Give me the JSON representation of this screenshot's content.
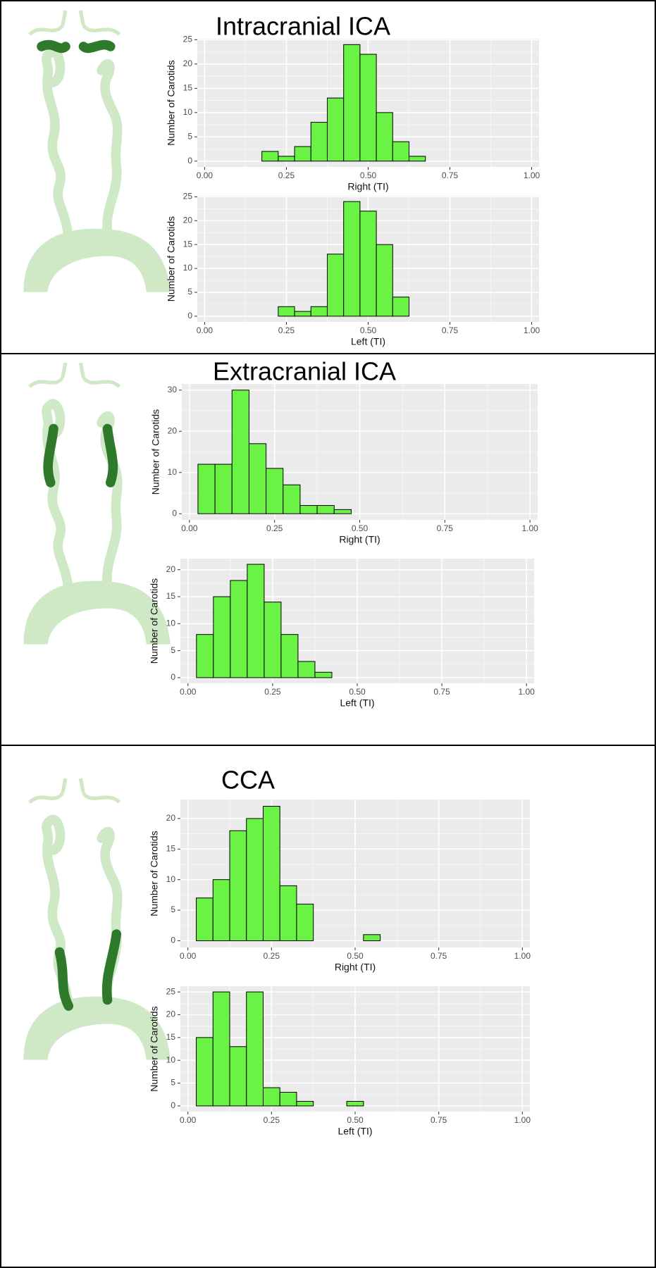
{
  "chart_data": [
    {
      "type": "histogram",
      "title": "Intracranial ICA",
      "xlabel": "Right (TI)",
      "ylabel": "Number of Carotids",
      "color": "#6af244",
      "grid": true,
      "bins": [
        0.025,
        0.075,
        0.125,
        0.175,
        0.225,
        0.275,
        0.325,
        0.375,
        0.425,
        0.475,
        0.525,
        0.575,
        0.625,
        0.675,
        0.725,
        0.775,
        0.825,
        0.875,
        0.925,
        0.975
      ],
      "values": [
        0,
        0,
        0,
        2,
        1,
        3,
        8,
        13,
        24,
        22,
        10,
        4,
        1,
        0,
        0,
        0,
        0,
        0,
        0
      ],
      "xlim": [
        -0.0225,
        1.0225
      ],
      "ylim": [
        -1.2,
        25.2
      ],
      "xticks": [
        {
          "value": 0,
          "label": "0.00"
        },
        {
          "value": 0.25,
          "label": "0.25"
        },
        {
          "value": 0.5,
          "label": "0.50"
        },
        {
          "value": 0.75,
          "label": "0.75"
        },
        {
          "value": 1,
          "label": "1.00"
        }
      ],
      "yticks": [
        0,
        5,
        10,
        15,
        20,
        25
      ]
    },
    {
      "type": "histogram",
      "xlabel": "Left (TI)",
      "ylabel": "Number of Carotids",
      "color": "#6af244",
      "grid": true,
      "bins": [
        0.025,
        0.075,
        0.125,
        0.175,
        0.225,
        0.275,
        0.325,
        0.375,
        0.425,
        0.475,
        0.525,
        0.575,
        0.625,
        0.675,
        0.725,
        0.775,
        0.825,
        0.875,
        0.925,
        0.975
      ],
      "values": [
        0,
        0,
        0,
        0,
        2,
        1,
        2,
        13,
        24,
        22,
        15,
        4,
        0,
        0,
        0,
        0,
        0,
        0,
        0
      ],
      "xlim": [
        -0.0225,
        1.0225
      ],
      "ylim": [
        -1.2,
        25.2
      ],
      "xticks": [
        {
          "value": 0,
          "label": "0.00"
        },
        {
          "value": 0.25,
          "label": "0.25"
        },
        {
          "value": 0.5,
          "label": "0.50"
        },
        {
          "value": 0.75,
          "label": "0.75"
        },
        {
          "value": 1,
          "label": "1.00"
        }
      ],
      "yticks": [
        0,
        5,
        10,
        15,
        20,
        25
      ]
    },
    {
      "type": "histogram",
      "title": "Extracranial ICA",
      "xlabel": "Right (TI)",
      "ylabel": "Number of Carotids",
      "color": "#6af244",
      "grid": true,
      "bins": [
        0.025,
        0.075,
        0.125,
        0.175,
        0.225,
        0.275,
        0.325,
        0.375,
        0.425,
        0.475,
        0.525,
        0.575,
        0.625,
        0.675,
        0.725,
        0.775,
        0.825,
        0.875,
        0.925,
        0.975
      ],
      "values": [
        12,
        12,
        30,
        17,
        11,
        7,
        2,
        2,
        1,
        0,
        0,
        0,
        0,
        0,
        0,
        0,
        0,
        0,
        0
      ],
      "xlim": [
        -0.0225,
        1.0225
      ],
      "ylim": [
        -1.5,
        31.5
      ],
      "xticks": [
        {
          "value": 0,
          "label": "0.00"
        },
        {
          "value": 0.25,
          "label": "0.25"
        },
        {
          "value": 0.5,
          "label": "0.50"
        },
        {
          "value": 0.75,
          "label": "0.75"
        },
        {
          "value": 1,
          "label": "1.00"
        }
      ],
      "yticks": [
        0,
        10,
        20,
        30
      ]
    },
    {
      "type": "histogram",
      "xlabel": "Left (TI)",
      "ylabel": "Number of Carotids",
      "color": "#6af244",
      "grid": true,
      "bins": [
        0.025,
        0.075,
        0.125,
        0.175,
        0.225,
        0.275,
        0.325,
        0.375,
        0.425,
        0.475,
        0.525,
        0.575,
        0.625,
        0.675,
        0.725,
        0.775,
        0.825,
        0.875,
        0.925,
        0.975
      ],
      "values": [
        8,
        15,
        18,
        21,
        14,
        8,
        3,
        1,
        0,
        0,
        0,
        0,
        0,
        0,
        0,
        0,
        0,
        0,
        0
      ],
      "xlim": [
        -0.0225,
        1.0225
      ],
      "ylim": [
        -1.05,
        22.05
      ],
      "xticks": [
        {
          "value": 0,
          "label": "0.00"
        },
        {
          "value": 0.25,
          "label": "0.25"
        },
        {
          "value": 0.5,
          "label": "0.50"
        },
        {
          "value": 0.75,
          "label": "0.75"
        },
        {
          "value": 1,
          "label": "1.00"
        }
      ],
      "yticks": [
        0,
        5,
        10,
        15,
        20
      ]
    },
    {
      "type": "histogram",
      "title": "CCA",
      "xlabel": "Right (TI)",
      "ylabel": "Number of Carotids",
      "color": "#6af244",
      "grid": true,
      "bins": [
        0.025,
        0.075,
        0.125,
        0.175,
        0.225,
        0.275,
        0.325,
        0.375,
        0.425,
        0.475,
        0.525,
        0.575,
        0.625,
        0.675,
        0.725,
        0.775,
        0.825,
        0.875,
        0.925,
        0.975
      ],
      "values": [
        7,
        10,
        18,
        20,
        22,
        9,
        6,
        0,
        0,
        0,
        1,
        0,
        0,
        0,
        0,
        0,
        0,
        0,
        0
      ],
      "xlim": [
        -0.0225,
        1.0225
      ],
      "ylim": [
        -1.1,
        23.1
      ],
      "xticks": [
        {
          "value": 0,
          "label": "0.00"
        },
        {
          "value": 0.25,
          "label": "0.25"
        },
        {
          "value": 0.5,
          "label": "0.50"
        },
        {
          "value": 0.75,
          "label": "0.75"
        },
        {
          "value": 1,
          "label": "1.00"
        }
      ],
      "yticks": [
        0,
        5,
        10,
        15,
        20
      ]
    },
    {
      "type": "histogram",
      "xlabel": "Left (TI)",
      "ylabel": "Number of Carotids",
      "color": "#6af244",
      "grid": true,
      "bins": [
        0.025,
        0.075,
        0.125,
        0.175,
        0.225,
        0.275,
        0.325,
        0.375,
        0.425,
        0.475,
        0.525,
        0.575,
        0.625,
        0.675,
        0.725,
        0.775,
        0.825,
        0.875,
        0.925,
        0.975
      ],
      "values": [
        15,
        25,
        13,
        25,
        4,
        3,
        1,
        0,
        0,
        1,
        0,
        0,
        0,
        0,
        0,
        0,
        0,
        0,
        0
      ],
      "xlim": [
        -0.0225,
        1.0225
      ],
      "ylim": [
        -1.25,
        26.25
      ],
      "xticks": [
        {
          "value": 0,
          "label": "0.00"
        },
        {
          "value": 0.25,
          "label": "0.25"
        },
        {
          "value": 0.5,
          "label": "0.50"
        },
        {
          "value": 0.75,
          "label": "0.75"
        },
        {
          "value": 1,
          "label": "1.00"
        }
      ],
      "yticks": [
        0,
        5,
        10,
        15,
        20,
        25
      ]
    }
  ]
}
